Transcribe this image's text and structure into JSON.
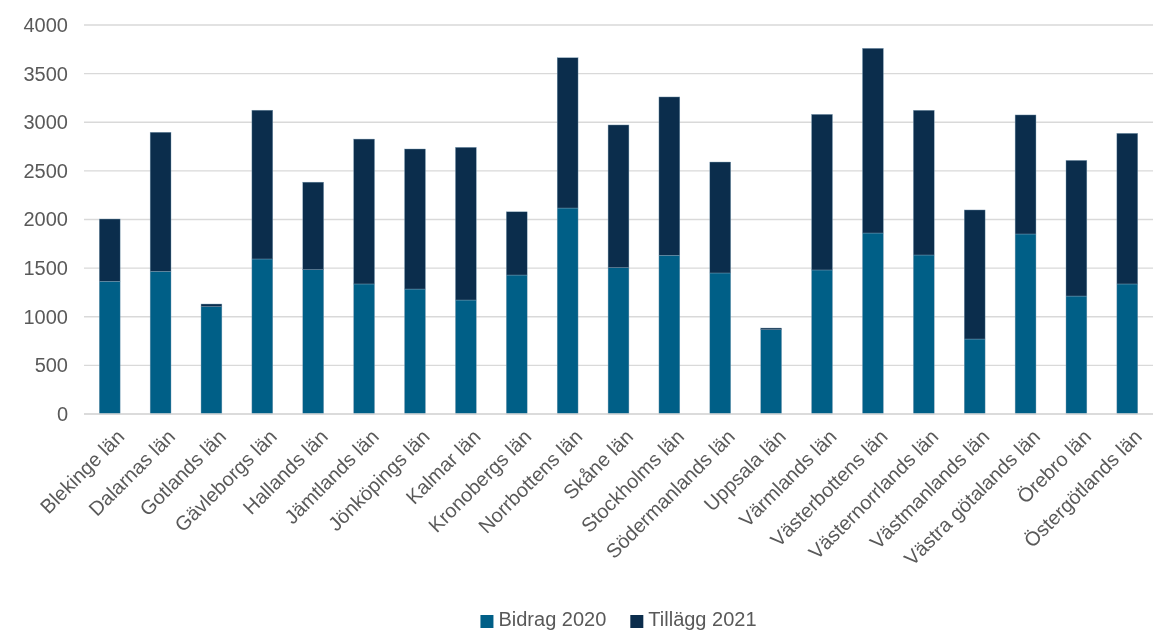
{
  "chart_data": {
    "type": "bar",
    "stacked": true,
    "categories": [
      "Blekinge län",
      "Dalarnas län",
      "Gotlands län",
      "Gävleborgs län",
      "Hallands län",
      "Jämtlands län",
      "Jönköpings län",
      "Kalmar län",
      "Kronobergs län",
      "Norrbottens län",
      "Skåne län",
      "Stockholms län",
      "Södermanlands län",
      "Uppsala län",
      "Värmlands län",
      "Västerbottens län",
      "Västernorrlands län",
      "Västmanlands län",
      "Västra götalands län",
      "Örebro län",
      "Östergötlands län"
    ],
    "series": [
      {
        "name": "Bidrag 2020",
        "color": "#005f87",
        "values": [
          1365,
          1467,
          1104,
          1594,
          1484,
          1337,
          1285,
          1172,
          1429,
          2118,
          1505,
          1632,
          1450,
          867,
          1481,
          1861,
          1635,
          771,
          1851,
          1213,
          1337
        ]
      },
      {
        "name": "Tillägg 2021",
        "color": "#0b2d4c",
        "values": [
          640,
          1430,
          27,
          1530,
          900,
          1490,
          1440,
          1570,
          650,
          1545,
          1467,
          1628,
          1141,
          17,
          1600,
          1899,
          1488,
          1327,
          1224,
          1395,
          1549
        ]
      }
    ],
    "ylim": [
      0,
      4000
    ],
    "yticks": [
      0,
      500,
      1000,
      1500,
      2000,
      2500,
      3000,
      3500,
      4000
    ],
    "grid": "y",
    "legend": "bottom"
  }
}
